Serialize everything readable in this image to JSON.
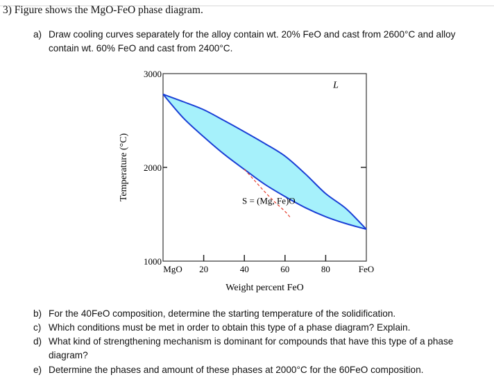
{
  "question": {
    "title": "3) Figure shows the MgO-FeO phase diagram.",
    "parts": [
      {
        "label": "a)",
        "text": "Draw cooling curves separately for the alloy contain wt. 20% FeO and cast from 2600°C and alloy contain wt. 60% FeO and cast from 2400°C."
      },
      {
        "label": "b)",
        "text": "For the 40FeO composition, determine the starting temperature of the solidification."
      },
      {
        "label": "c)",
        "text": "Which conditions must be met in order to obtain this type of a phase diagram? Explain."
      },
      {
        "label": "d)",
        "text": "What kind of strengthening mechanism is dominant for compounds that have this type of a phase diagram?"
      },
      {
        "label": "e)",
        "text": "Determine the phases and amount of these phases at 2000°C for the 60FeO composition."
      }
    ]
  },
  "chart_data": {
    "type": "line",
    "xlabel": "Weight percent FeO",
    "ylabel": "Temperature (°C)",
    "xlim": [
      0,
      100
    ],
    "ylim": [
      1000,
      3000
    ],
    "x_ticks": [
      {
        "value": 0,
        "label": "MgO"
      },
      {
        "value": 20,
        "label": "20"
      },
      {
        "value": 40,
        "label": "40"
      },
      {
        "value": 60,
        "label": "60"
      },
      {
        "value": 80,
        "label": "80"
      },
      {
        "value": 100,
        "label": "FeO"
      }
    ],
    "y_ticks": [
      {
        "value": 3000,
        "label": "3000"
      },
      {
        "value": 2000,
        "label": "2000"
      },
      {
        "value": 1000,
        "label": "1000"
      }
    ],
    "grid": false,
    "series": [
      {
        "kind": "liquidus",
        "x": [
          0,
          10,
          20,
          30,
          40,
          50,
          60,
          70,
          80,
          90,
          100
        ],
        "y": [
          2780,
          2700,
          2615,
          2500,
          2380,
          2255,
          2120,
          1930,
          1720,
          1560,
          1340
        ]
      },
      {
        "kind": "solidus",
        "x": [
          0,
          10,
          20,
          30,
          40,
          50,
          60,
          70,
          80,
          90,
          100
        ],
        "y": [
          2780,
          2526,
          2326,
          2141,
          1978,
          1820,
          1689,
          1570,
          1474,
          1400,
          1340
        ]
      },
      {
        "kind": "red-dashed",
        "x": [
          40,
          45,
          50,
          55,
          60,
          63
        ],
        "y": [
          1980,
          1860,
          1740,
          1630,
          1530,
          1455
        ]
      }
    ],
    "region_labels": [
      {
        "text": "L",
        "x": 85,
        "y": 2850
      },
      {
        "text": "S = (Mg, Fe)O",
        "x": 52,
        "y": 1610
      }
    ],
    "colors": {
      "two_phase_fill": "#a6f1fb",
      "curve": "#1a3fd6",
      "dashed": "#e53b2a"
    }
  }
}
